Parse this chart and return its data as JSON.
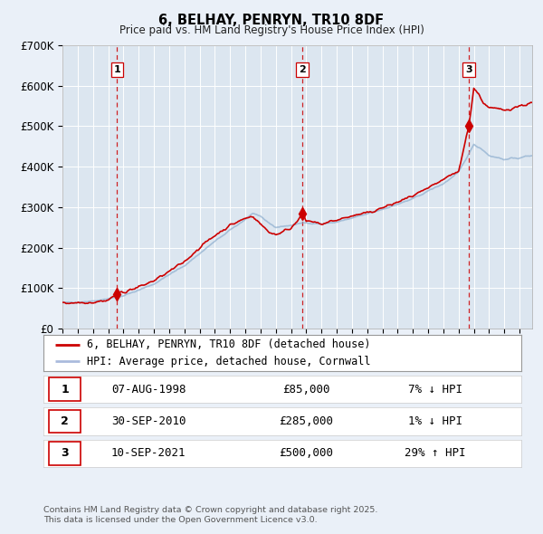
{
  "title": "6, BELHAY, PENRYN, TR10 8DF",
  "subtitle": "Price paid vs. HM Land Registry's House Price Index (HPI)",
  "ylim": [
    0,
    700000
  ],
  "yticks": [
    0,
    100000,
    200000,
    300000,
    400000,
    500000,
    600000,
    700000
  ],
  "ytick_labels": [
    "£0",
    "£100K",
    "£200K",
    "£300K",
    "£400K",
    "£500K",
    "£600K",
    "£700K"
  ],
  "xlim_start": 1995.0,
  "xlim_end": 2025.83,
  "bg_color": "#eaf0f8",
  "plot_bg_color": "#dce6f0",
  "grid_color": "#ffffff",
  "red_line_color": "#cc0000",
  "blue_line_color": "#88aaccaa",
  "sale_marker_color": "#cc0000",
  "vline_color": "#cc0000",
  "transactions": [
    {
      "num": 1,
      "year": 1998.58,
      "price": 85000,
      "date": "07-AUG-1998",
      "pct": "7%",
      "dir": "↓"
    },
    {
      "num": 2,
      "year": 2010.75,
      "price": 285000,
      "date": "30-SEP-2010",
      "pct": "1%",
      "dir": "↓"
    },
    {
      "num": 3,
      "year": 2021.67,
      "price": 500000,
      "date": "10-SEP-2021",
      "pct": "29%",
      "dir": "↑"
    }
  ],
  "legend1_label": "6, BELHAY, PENRYN, TR10 8DF (detached house)",
  "legend2_label": "HPI: Average price, detached house, Cornwall",
  "footer1": "Contains HM Land Registry data © Crown copyright and database right 2025.",
  "footer2": "This data is licensed under the Open Government Licence v3.0."
}
